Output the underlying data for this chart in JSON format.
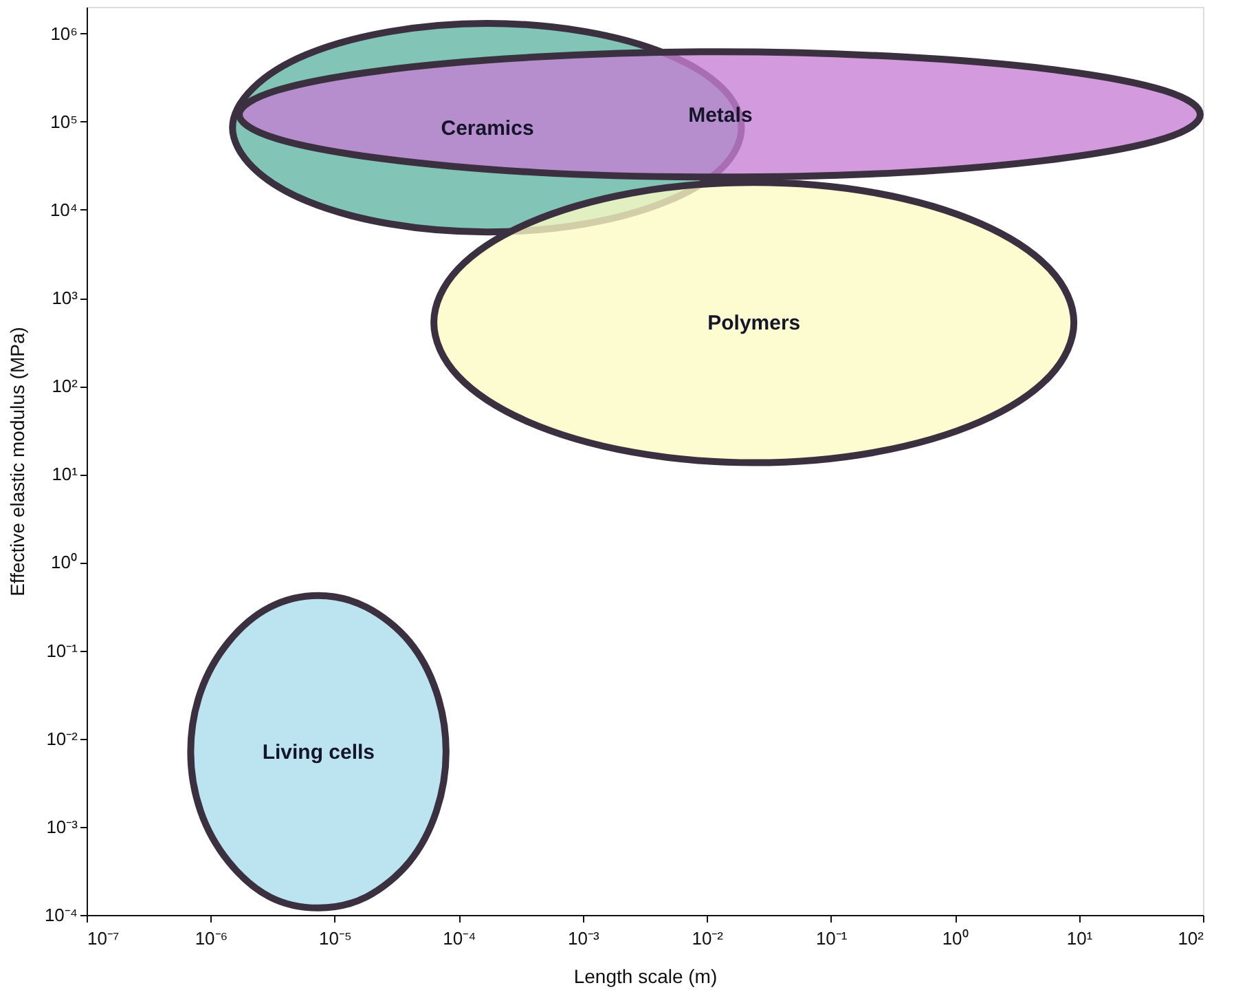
{
  "chart_data": {
    "type": "area",
    "xlabel": "Length scale (m)",
    "ylabel": "Effective elastic modulus (MPa)",
    "log": "xy",
    "grid": false,
    "xlim": [
      1e-07,
      100
    ],
    "ylim": [
      0.0001,
      2000000.0
    ],
    "xticks": [
      {
        "value": 1e-07,
        "label": "10⁻⁷"
      },
      {
        "value": 1e-06,
        "label": "10⁻⁶"
      },
      {
        "value": 1e-05,
        "label": "10⁻⁵"
      },
      {
        "value": 0.0001,
        "label": "10⁻⁴"
      },
      {
        "value": 0.001,
        "label": "10⁻³"
      },
      {
        "value": 0.01,
        "label": "10⁻²"
      },
      {
        "value": 0.1,
        "label": "10⁻¹"
      },
      {
        "value": 1,
        "label": "10⁰"
      },
      {
        "value": 10,
        "label": "10¹"
      },
      {
        "value": 100,
        "label": "10²"
      }
    ],
    "yticks": [
      {
        "value": 0.0001,
        "label": "10⁻⁴"
      },
      {
        "value": 0.001,
        "label": "10⁻³"
      },
      {
        "value": 0.01,
        "label": "10⁻²"
      },
      {
        "value": 0.1,
        "label": "10⁻¹"
      },
      {
        "value": 1,
        "label": "10⁰"
      },
      {
        "value": 10,
        "label": "10¹"
      },
      {
        "value": 100,
        "label": "10²"
      },
      {
        "value": 1000,
        "label": "10³"
      },
      {
        "value": 10000,
        "label": "10⁴"
      },
      {
        "value": 100000,
        "label": "10⁵"
      },
      {
        "value": 1000000,
        "label": "10⁶"
      }
    ],
    "series": [
      {
        "name": "Ceramics",
        "color": "#5fb3a0",
        "x": [
          0.019,
          0.0133,
          0.0048,
          0.00104,
          0.00017,
          2.8e-05,
          6e-06,
          2.2e-06,
          1.5e-06,
          2.2e-06,
          6e-06,
          2.8e-05,
          0.00017,
          0.00104,
          0.0048,
          0.0133
        ],
        "values": [
          85000.0,
          240000.0,
          580000.0,
          1050000.0,
          1300000.0,
          1050000.0,
          580000.0,
          240000.0,
          85000.0,
          30000.0,
          12500.0,
          6900,
          5600,
          6900,
          12500.0,
          30000.0
        ]
      },
      {
        "name": "Metals",
        "color": "#c77fd3",
        "x": [
          95,
          48.5,
          7.0,
          0.39,
          0.0129,
          0.00042,
          2.4e-05,
          3.4e-06,
          1.7e-06,
          3.4e-06,
          2.4e-05,
          0.00042,
          0.0129,
          0.39,
          7.0,
          48.5
        ],
        "values": [
          120000.0,
          225000.0,
          380000.0,
          540000.0,
          620000.0,
          540000.0,
          380000.0,
          225000.0,
          120000.0,
          64000.0,
          38000.0,
          26500.0,
          23500.0,
          26500.0,
          38000.0,
          64000.0
        ]
      },
      {
        "name": "Polymers",
        "color": "#fdfbc4",
        "x": [
          9.1,
          5.8,
          1.6,
          0.23,
          0.024,
          0.0025,
          0.00036,
          9.9e-05,
          6.3e-05,
          9.9e-05,
          0.00036,
          0.0025,
          0.024,
          0.23,
          1.6,
          5.8
        ],
        "values": [
          525,
          2130,
          6980,
          15500,
          20400,
          15500,
          6980,
          2130,
          525,
          129,
          39.4,
          17.8,
          13.5,
          17.8,
          39.4,
          129
        ]
      },
      {
        "name": "Living cells",
        "color": "#a9dcec",
        "x": [
          7.9e-05,
          6.6e-05,
          4e-05,
          1.8e-05,
          7.4e-06,
          3e-06,
          1.4e-06,
          8.3e-07,
          6.9e-07,
          8.3e-07,
          1.4e-06,
          3e-06,
          7.4e-06,
          1.8e-05,
          4e-05,
          6.6e-05
        ],
        "values": [
          0.0071,
          0.034,
          0.126,
          0.31,
          0.42,
          0.31,
          0.126,
          0.034,
          0.0071,
          0.0015,
          0.0004,
          0.00016,
          0.00012,
          0.00016,
          0.0004,
          0.0015
        ]
      }
    ]
  }
}
